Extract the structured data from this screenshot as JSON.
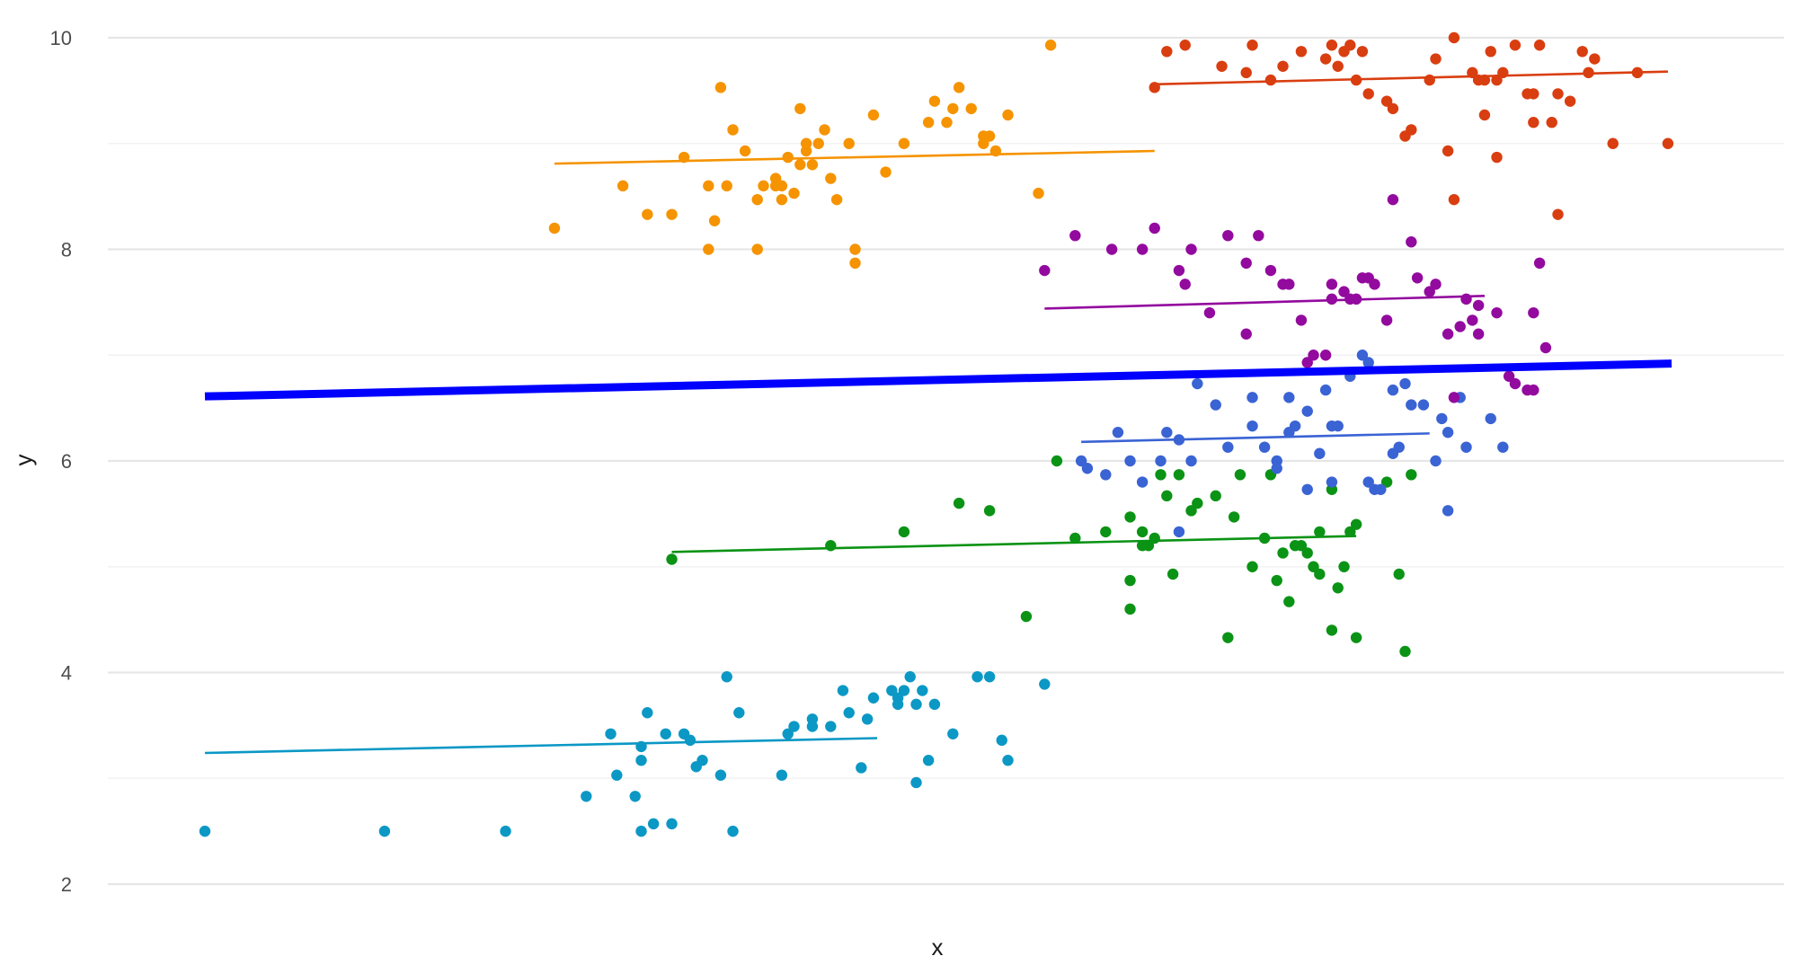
{
  "chart_data": {
    "type": "scatter",
    "xlabel": "x",
    "ylabel": "y",
    "ylim": [
      1.7,
      10.2
    ],
    "y_ticks": [
      2,
      4,
      6,
      8,
      10
    ],
    "y_tick_labels": [
      "2",
      "4",
      "6",
      "8",
      "10"
    ],
    "x_ticks": [],
    "grid": true,
    "x_axis_numbering": "none",
    "overall_trend": {
      "x": [
        0.0,
        12.0
      ],
      "y": [
        6.61,
        6.92
      ],
      "color": "#0000ff"
    },
    "series": [
      {
        "color": "#0b98c5",
        "trend": {
          "x": [
            0.0,
            5.5
          ],
          "y": [
            3.24,
            3.38
          ]
        },
        "points": [
          [
            0.0,
            2.5
          ],
          [
            1.47,
            2.5
          ],
          [
            2.46,
            2.5
          ],
          [
            3.12,
            2.83
          ],
          [
            3.32,
            3.42
          ],
          [
            3.37,
            3.03
          ],
          [
            3.52,
            2.83
          ],
          [
            3.57,
            2.5
          ],
          [
            3.57,
            3.17
          ],
          [
            3.57,
            3.3
          ],
          [
            3.62,
            3.62
          ],
          [
            3.67,
            2.57
          ],
          [
            3.77,
            3.42
          ],
          [
            3.82,
            2.57
          ],
          [
            3.92,
            3.42
          ],
          [
            3.97,
            3.36
          ],
          [
            4.02,
            3.11
          ],
          [
            4.07,
            3.17
          ],
          [
            4.22,
            3.03
          ],
          [
            4.27,
            3.96
          ],
          [
            4.32,
            2.5
          ],
          [
            4.37,
            3.62
          ],
          [
            4.72,
            3.03
          ],
          [
            4.77,
            3.42
          ],
          [
            4.82,
            3.49
          ],
          [
            4.97,
            3.56
          ],
          [
            4.97,
            3.49
          ],
          [
            5.12,
            3.49
          ],
          [
            5.22,
            3.83
          ],
          [
            5.27,
            3.62
          ],
          [
            5.37,
            3.1
          ],
          [
            5.42,
            3.56
          ],
          [
            5.47,
            3.76
          ],
          [
            5.62,
            3.83
          ],
          [
            5.67,
            3.7
          ],
          [
            5.67,
            3.76
          ],
          [
            5.72,
            3.83
          ],
          [
            5.77,
            3.96
          ],
          [
            5.82,
            3.7
          ],
          [
            5.82,
            2.96
          ],
          [
            5.87,
            3.83
          ],
          [
            5.92,
            3.17
          ],
          [
            5.97,
            3.7
          ],
          [
            6.12,
            3.42
          ],
          [
            6.32,
            3.96
          ],
          [
            6.42,
            3.96
          ],
          [
            6.52,
            3.36
          ],
          [
            6.57,
            3.17
          ],
          [
            6.87,
            3.89
          ]
        ]
      },
      {
        "color": "#0b9315",
        "trend": {
          "x": [
            3.82,
            9.42
          ],
          "y": [
            5.14,
            5.29
          ]
        },
        "points": [
          [
            3.82,
            5.07
          ],
          [
            5.12,
            5.2
          ],
          [
            5.72,
            5.33
          ],
          [
            6.17,
            5.6
          ],
          [
            6.42,
            5.53
          ],
          [
            6.72,
            4.53
          ],
          [
            6.97,
            6.0
          ],
          [
            7.12,
            5.27
          ],
          [
            7.37,
            5.33
          ],
          [
            7.57,
            5.47
          ],
          [
            7.67,
            5.33
          ],
          [
            7.72,
            5.2
          ],
          [
            7.77,
            5.27
          ],
          [
            7.82,
            5.87
          ],
          [
            7.87,
            5.67
          ],
          [
            7.97,
            5.87
          ],
          [
            8.07,
            5.53
          ],
          [
            8.12,
            5.6
          ],
          [
            8.27,
            5.67
          ],
          [
            8.42,
            5.47
          ],
          [
            8.47,
            5.87
          ],
          [
            8.57,
            5.0
          ],
          [
            8.77,
            4.87
          ],
          [
            8.92,
            5.2
          ],
          [
            9.12,
            5.33
          ],
          [
            9.12,
            4.93
          ],
          [
            9.22,
            4.4
          ],
          [
            9.32,
            5.0
          ],
          [
            9.42,
            4.33
          ],
          [
            7.57,
            4.87
          ],
          [
            7.57,
            4.6
          ],
          [
            7.92,
            4.93
          ],
          [
            8.37,
            4.33
          ],
          [
            9.82,
            4.2
          ],
          [
            9.77,
            4.93
          ],
          [
            9.22,
            5.73
          ],
          [
            8.97,
            5.2
          ],
          [
            8.72,
            5.87
          ],
          [
            9.07,
            5.0
          ],
          [
            9.42,
            5.4
          ],
          [
            8.87,
            4.67
          ],
          [
            9.27,
            4.8
          ],
          [
            9.67,
            5.8
          ],
          [
            9.87,
            5.87
          ],
          [
            7.67,
            5.2
          ],
          [
            8.67,
            5.27
          ],
          [
            8.82,
            5.13
          ],
          [
            9.02,
            5.13
          ],
          [
            9.37,
            5.33
          ]
        ]
      },
      {
        "color": "#3a63d4",
        "trend": {
          "x": [
            7.17,
            10.02
          ],
          "y": [
            6.18,
            6.26
          ]
        },
        "points": [
          [
            7.17,
            6.0
          ],
          [
            7.22,
            5.93
          ],
          [
            7.37,
            5.87
          ],
          [
            7.47,
            6.27
          ],
          [
            7.57,
            6.0
          ],
          [
            7.67,
            5.8
          ],
          [
            7.82,
            6.0
          ],
          [
            7.87,
            6.27
          ],
          [
            7.97,
            6.2
          ],
          [
            8.07,
            6.0
          ],
          [
            8.12,
            6.73
          ],
          [
            8.27,
            6.53
          ],
          [
            8.37,
            6.13
          ],
          [
            8.57,
            6.6
          ],
          [
            8.57,
            6.33
          ],
          [
            8.67,
            6.13
          ],
          [
            8.77,
            6.0
          ],
          [
            8.77,
            5.93
          ],
          [
            8.87,
            6.27
          ],
          [
            8.92,
            6.33
          ],
          [
            9.02,
            6.47
          ],
          [
            9.12,
            6.07
          ],
          [
            9.22,
            6.33
          ],
          [
            9.27,
            6.33
          ],
          [
            9.37,
            6.8
          ],
          [
            9.47,
            7.0
          ],
          [
            9.52,
            6.93
          ],
          [
            9.62,
            5.73
          ],
          [
            9.72,
            6.67
          ],
          [
            9.77,
            6.13
          ],
          [
            9.82,
            6.73
          ],
          [
            9.87,
            6.53
          ],
          [
            9.97,
            6.53
          ],
          [
            10.07,
            6.0
          ],
          [
            10.12,
            6.4
          ],
          [
            10.17,
            6.27
          ],
          [
            10.27,
            6.6
          ],
          [
            10.32,
            6.13
          ],
          [
            10.52,
            6.4
          ],
          [
            10.62,
            6.13
          ],
          [
            8.87,
            6.6
          ],
          [
            9.02,
            5.73
          ],
          [
            9.22,
            5.8
          ],
          [
            9.52,
            5.8
          ],
          [
            9.57,
            5.73
          ],
          [
            10.17,
            5.53
          ],
          [
            7.97,
            5.33
          ],
          [
            9.72,
            6.07
          ],
          [
            9.17,
            6.67
          ]
        ]
      },
      {
        "color": "#930a9e",
        "trend": {
          "x": [
            6.87,
            10.47
          ],
          "y": [
            7.44,
            7.56
          ]
        },
        "points": [
          [
            6.87,
            7.8
          ],
          [
            7.12,
            8.13
          ],
          [
            7.42,
            8.0
          ],
          [
            7.67,
            8.0
          ],
          [
            7.77,
            8.2
          ],
          [
            7.97,
            7.8
          ],
          [
            8.07,
            8.0
          ],
          [
            8.22,
            7.4
          ],
          [
            8.37,
            8.13
          ],
          [
            8.52,
            7.87
          ],
          [
            8.62,
            8.13
          ],
          [
            8.72,
            7.8
          ],
          [
            8.82,
            7.67
          ],
          [
            8.87,
            7.67
          ],
          [
            8.97,
            7.33
          ],
          [
            9.02,
            6.93
          ],
          [
            9.17,
            7.0
          ],
          [
            9.22,
            7.67
          ],
          [
            9.32,
            7.6
          ],
          [
            9.37,
            7.53
          ],
          [
            9.42,
            7.53
          ],
          [
            9.47,
            7.73
          ],
          [
            9.52,
            7.73
          ],
          [
            9.57,
            7.67
          ],
          [
            9.67,
            7.33
          ],
          [
            9.72,
            8.47
          ],
          [
            9.87,
            8.07
          ],
          [
            9.92,
            7.73
          ],
          [
            10.02,
            7.6
          ],
          [
            10.07,
            7.67
          ],
          [
            10.17,
            7.2
          ],
          [
            10.22,
            6.6
          ],
          [
            10.27,
            7.27
          ],
          [
            10.37,
            7.33
          ],
          [
            10.42,
            7.2
          ],
          [
            10.42,
            7.47
          ],
          [
            10.57,
            7.4
          ],
          [
            10.67,
            6.8
          ],
          [
            10.72,
            6.73
          ],
          [
            10.82,
            6.67
          ],
          [
            10.87,
            6.67
          ],
          [
            10.97,
            7.07
          ],
          [
            10.92,
            7.87
          ],
          [
            8.52,
            7.2
          ],
          [
            9.07,
            7.0
          ],
          [
            10.32,
            7.53
          ],
          [
            9.22,
            7.53
          ],
          [
            10.87,
            7.4
          ],
          [
            8.02,
            7.67
          ]
        ]
      },
      {
        "color": "#f59300",
        "trend": {
          "x": [
            2.86,
            7.77
          ],
          "y": [
            8.81,
            8.93
          ]
        },
        "points": [
          [
            2.86,
            8.2
          ],
          [
            3.42,
            8.6
          ],
          [
            3.62,
            8.33
          ],
          [
            3.82,
            8.33
          ],
          [
            3.92,
            8.87
          ],
          [
            4.12,
            8.0
          ],
          [
            4.17,
            8.27
          ],
          [
            4.27,
            8.6
          ],
          [
            4.32,
            9.13
          ],
          [
            4.42,
            8.93
          ],
          [
            4.52,
            8.0
          ],
          [
            4.52,
            8.47
          ],
          [
            4.57,
            8.6
          ],
          [
            4.67,
            8.67
          ],
          [
            4.67,
            8.6
          ],
          [
            4.72,
            8.47
          ],
          [
            4.77,
            8.87
          ],
          [
            4.82,
            8.53
          ],
          [
            4.87,
            9.33
          ],
          [
            4.87,
            8.8
          ],
          [
            4.92,
            8.93
          ],
          [
            4.97,
            8.8
          ],
          [
            5.02,
            9.0
          ],
          [
            5.07,
            9.13
          ],
          [
            5.12,
            8.67
          ],
          [
            5.17,
            8.47
          ],
          [
            5.27,
            9.0
          ],
          [
            5.32,
            7.87
          ],
          [
            5.32,
            8.0
          ],
          [
            5.57,
            8.73
          ],
          [
            5.72,
            9.0
          ],
          [
            5.92,
            9.2
          ],
          [
            5.97,
            9.4
          ],
          [
            6.07,
            9.2
          ],
          [
            6.12,
            9.33
          ],
          [
            6.17,
            9.53
          ],
          [
            6.27,
            9.33
          ],
          [
            6.37,
            9.0
          ],
          [
            6.42,
            9.07
          ],
          [
            6.47,
            8.93
          ],
          [
            6.57,
            9.27
          ],
          [
            6.82,
            8.53
          ],
          [
            6.92,
            9.93
          ],
          [
            4.12,
            8.6
          ],
          [
            5.47,
            9.27
          ],
          [
            4.92,
            9.0
          ],
          [
            4.72,
            8.6
          ],
          [
            4.22,
            9.53
          ],
          [
            6.37,
            9.07
          ]
        ]
      },
      {
        "color": "#d93e10",
        "trend": {
          "x": [
            7.77,
            11.97
          ],
          "y": [
            9.56,
            9.68
          ]
        },
        "points": [
          [
            7.77,
            9.53
          ],
          [
            7.87,
            9.87
          ],
          [
            8.02,
            9.93
          ],
          [
            8.32,
            9.73
          ],
          [
            8.52,
            9.67
          ],
          [
            8.57,
            9.93
          ],
          [
            8.72,
            9.6
          ],
          [
            8.97,
            9.87
          ],
          [
            9.17,
            9.8
          ],
          [
            9.22,
            9.93
          ],
          [
            9.27,
            9.73
          ],
          [
            9.32,
            9.87
          ],
          [
            9.37,
            9.93
          ],
          [
            9.47,
            9.87
          ],
          [
            9.52,
            9.47
          ],
          [
            9.72,
            9.33
          ],
          [
            9.82,
            9.07
          ],
          [
            9.87,
            9.13
          ],
          [
            10.07,
            9.8
          ],
          [
            10.17,
            8.93
          ],
          [
            10.22,
            10.0
          ],
          [
            10.37,
            9.67
          ],
          [
            10.42,
            9.6
          ],
          [
            10.47,
            9.6
          ],
          [
            10.52,
            9.87
          ],
          [
            10.57,
            9.6
          ],
          [
            10.62,
            9.67
          ],
          [
            10.72,
            9.93
          ],
          [
            10.82,
            9.47
          ],
          [
            10.87,
            9.2
          ],
          [
            10.92,
            9.93
          ],
          [
            11.02,
            9.2
          ],
          [
            11.07,
            9.47
          ],
          [
            11.17,
            9.4
          ],
          [
            11.27,
            9.87
          ],
          [
            11.32,
            9.67
          ],
          [
            11.37,
            9.8
          ],
          [
            11.52,
            9.0
          ],
          [
            11.72,
            9.67
          ],
          [
            11.97,
            9.0
          ],
          [
            10.57,
            8.87
          ],
          [
            10.22,
            8.47
          ],
          [
            11.07,
            8.33
          ],
          [
            10.02,
            9.6
          ],
          [
            9.67,
            9.4
          ],
          [
            10.47,
            9.27
          ],
          [
            10.87,
            9.47
          ],
          [
            9.42,
            9.6
          ],
          [
            8.82,
            9.73
          ]
        ]
      }
    ]
  }
}
